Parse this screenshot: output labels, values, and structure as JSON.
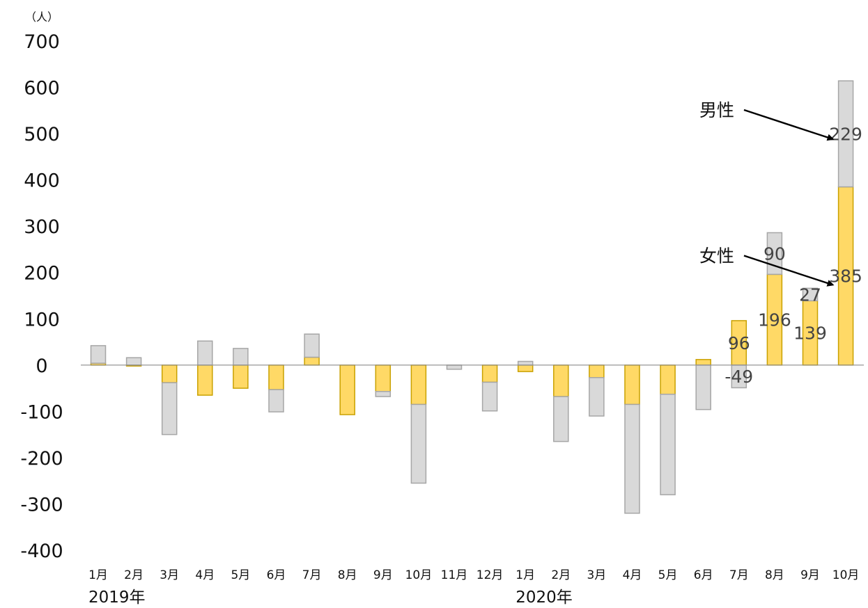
{
  "chart_data": {
    "type": "bar",
    "stacked": true,
    "unit_label": "（人）",
    "categories": [
      "1月",
      "2月",
      "3月",
      "4月",
      "5月",
      "6月",
      "7月",
      "8月",
      "9月",
      "10月",
      "11月",
      "12月",
      "1月",
      "2月",
      "3月",
      "4月",
      "5月",
      "6月",
      "7月",
      "8月",
      "9月",
      "10月"
    ],
    "year_labels": [
      {
        "text": "2019年",
        "category_index": 0
      },
      {
        "text": "2020年",
        "category_index": 12
      }
    ],
    "ylim": [
      -400,
      700
    ],
    "yticks": [
      700,
      600,
      500,
      400,
      300,
      200,
      100,
      0,
      -100,
      -200,
      -300,
      -400
    ],
    "ytick_labels": [
      "700",
      "600",
      "500",
      "400",
      "300",
      "200",
      "100",
      "0",
      "-100",
      "-200",
      "-300",
      "-400"
    ],
    "series": [
      {
        "name": "女性",
        "color": "#FFD966",
        "border": "#C9A100",
        "values": [
          4,
          -2,
          -38,
          -65,
          -50,
          -53,
          17,
          -107,
          -57,
          -85,
          0,
          -37,
          -14,
          -68,
          -27,
          -85,
          -63,
          12,
          96,
          196,
          139,
          385
        ]
      },
      {
        "name": "男性",
        "color": "#D9D9D9",
        "border": "#A6A6A6",
        "values": [
          38,
          16,
          -112,
          52,
          36,
          -48,
          50,
          0,
          -11,
          -170,
          -9,
          -62,
          8,
          -97,
          -83,
          -235,
          -217,
          -96,
          -49,
          90,
          27,
          229
        ]
      }
    ],
    "data_labels": [
      {
        "series": 0,
        "index": 18,
        "text": "96"
      },
      {
        "series": 1,
        "index": 18,
        "text": "-49"
      },
      {
        "series": 0,
        "index": 19,
        "text": "196"
      },
      {
        "series": 1,
        "index": 19,
        "text": "90"
      },
      {
        "series": 0,
        "index": 20,
        "text": "139"
      },
      {
        "series": 1,
        "index": 20,
        "text": "27"
      },
      {
        "series": 0,
        "index": 21,
        "text": "385"
      },
      {
        "series": 1,
        "index": 21,
        "text": "229"
      }
    ],
    "annotations": [
      {
        "text": "男性",
        "target_series": 1,
        "target_index": 21
      },
      {
        "text": "女性",
        "target_series": 0,
        "target_index": 21
      }
    ],
    "grid": false,
    "legend": "none"
  }
}
